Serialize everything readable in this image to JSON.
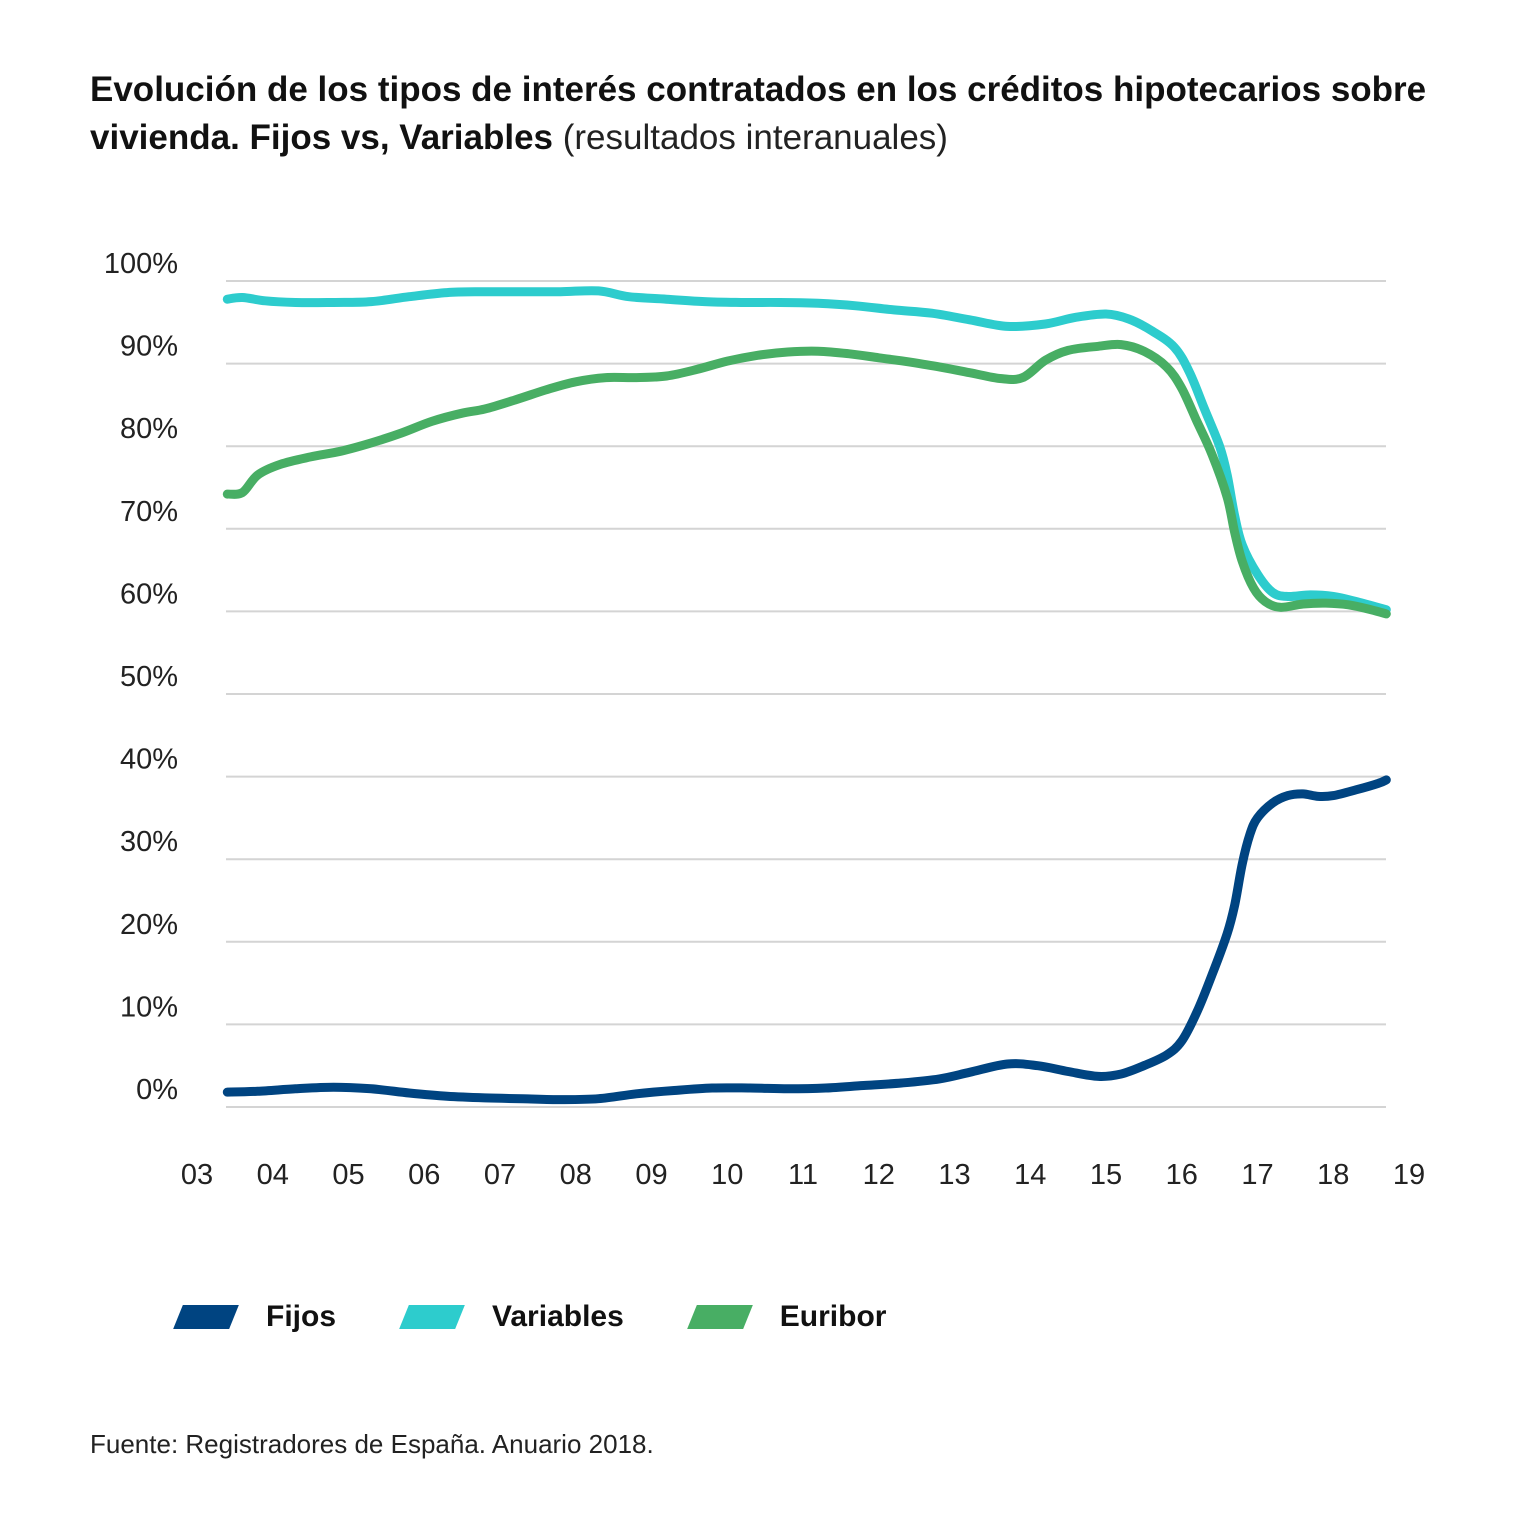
{
  "title": {
    "bold": "Evolución de los tipos de interés contratados en los créditos hipotecarios sobre vivienda. Fijos vs, Variables",
    "light": "(resultados interanuales)"
  },
  "source": "Fuente: Registradores de España. Anuario 2018.",
  "chart_data": {
    "type": "line",
    "title": "Evolución de los tipos de interés contratados en los créditos hipotecarios sobre vivienda. Fijos vs, Variables (resultados interanuales)",
    "xlabel": "",
    "ylabel": "",
    "xlim": [
      3,
      19
    ],
    "ylim": [
      0,
      100
    ],
    "grid": true,
    "legend_position": "bottom",
    "y_ticks": [
      {
        "value": 0,
        "label": "0%"
      },
      {
        "value": 10,
        "label": "10%"
      },
      {
        "value": 20,
        "label": "20%"
      },
      {
        "value": 30,
        "label": "30%"
      },
      {
        "value": 40,
        "label": "40%"
      },
      {
        "value": 50,
        "label": "50%"
      },
      {
        "value": 60,
        "label": "60%"
      },
      {
        "value": 70,
        "label": "70%"
      },
      {
        "value": 80,
        "label": "80%"
      },
      {
        "value": 90,
        "label": "90%"
      },
      {
        "value": 100,
        "label": "100%"
      }
    ],
    "x_ticks": [
      {
        "value": 3,
        "label": "03"
      },
      {
        "value": 4,
        "label": "04"
      },
      {
        "value": 5,
        "label": "05"
      },
      {
        "value": 6,
        "label": "06"
      },
      {
        "value": 7,
        "label": "07"
      },
      {
        "value": 8,
        "label": "08"
      },
      {
        "value": 9,
        "label": "09"
      },
      {
        "value": 10,
        "label": "10"
      },
      {
        "value": 11,
        "label": "11"
      },
      {
        "value": 12,
        "label": "12"
      },
      {
        "value": 13,
        "label": "13"
      },
      {
        "value": 14,
        "label": "14"
      },
      {
        "value": 15,
        "label": "15"
      },
      {
        "value": 16,
        "label": "16"
      },
      {
        "value": 17,
        "label": "17"
      },
      {
        "value": 18,
        "label": "18"
      },
      {
        "value": 19,
        "label": "19"
      }
    ],
    "series": [
      {
        "name": "Fijos",
        "color": "#004481",
        "points": [
          [
            3.4,
            1.8
          ],
          [
            3.8,
            1.9
          ],
          [
            4.3,
            2.2
          ],
          [
            4.8,
            2.4
          ],
          [
            5.3,
            2.2
          ],
          [
            5.8,
            1.7
          ],
          [
            6.3,
            1.3
          ],
          [
            6.8,
            1.1
          ],
          [
            7.3,
            1.0
          ],
          [
            7.8,
            0.9
          ],
          [
            8.3,
            1.0
          ],
          [
            8.8,
            1.6
          ],
          [
            9.3,
            2.0
          ],
          [
            9.8,
            2.3
          ],
          [
            10.3,
            2.3
          ],
          [
            10.8,
            2.2
          ],
          [
            11.3,
            2.3
          ],
          [
            11.8,
            2.6
          ],
          [
            12.3,
            2.9
          ],
          [
            12.8,
            3.4
          ],
          [
            13.2,
            4.2
          ],
          [
            13.7,
            5.2
          ],
          [
            14.1,
            5.0
          ],
          [
            14.5,
            4.3
          ],
          [
            14.9,
            3.7
          ],
          [
            15.2,
            4.0
          ],
          [
            15.5,
            5.0
          ],
          [
            15.8,
            6.3
          ],
          [
            16.0,
            8.0
          ],
          [
            16.2,
            11.5
          ],
          [
            16.4,
            16.0
          ],
          [
            16.6,
            21.0
          ],
          [
            16.7,
            24.5
          ],
          [
            16.8,
            29.5
          ],
          [
            16.9,
            33.0
          ],
          [
            17.0,
            35.0
          ],
          [
            17.2,
            36.8
          ],
          [
            17.4,
            37.7
          ],
          [
            17.6,
            37.9
          ],
          [
            17.8,
            37.6
          ],
          [
            18.0,
            37.7
          ],
          [
            18.3,
            38.4
          ],
          [
            18.6,
            39.2
          ],
          [
            18.7,
            39.6
          ]
        ]
      },
      {
        "name": "Variables",
        "color": "#2dcccd",
        "points": [
          [
            3.4,
            97.8
          ],
          [
            3.6,
            98.0
          ],
          [
            3.9,
            97.6
          ],
          [
            4.3,
            97.4
          ],
          [
            4.8,
            97.4
          ],
          [
            5.3,
            97.5
          ],
          [
            5.8,
            98.1
          ],
          [
            6.3,
            98.6
          ],
          [
            6.8,
            98.7
          ],
          [
            7.3,
            98.7
          ],
          [
            7.8,
            98.7
          ],
          [
            8.3,
            98.8
          ],
          [
            8.7,
            98.1
          ],
          [
            9.2,
            97.8
          ],
          [
            9.7,
            97.5
          ],
          [
            10.2,
            97.4
          ],
          [
            10.7,
            97.4
          ],
          [
            11.2,
            97.3
          ],
          [
            11.7,
            97.0
          ],
          [
            12.2,
            96.5
          ],
          [
            12.7,
            96.1
          ],
          [
            13.2,
            95.3
          ],
          [
            13.7,
            94.5
          ],
          [
            14.2,
            94.8
          ],
          [
            14.6,
            95.6
          ],
          [
            15.0,
            96.0
          ],
          [
            15.3,
            95.4
          ],
          [
            15.6,
            94.0
          ],
          [
            15.9,
            92.0
          ],
          [
            16.1,
            89.0
          ],
          [
            16.3,
            84.5
          ],
          [
            16.5,
            80.0
          ],
          [
            16.6,
            76.5
          ],
          [
            16.7,
            71.5
          ],
          [
            16.8,
            68.0
          ],
          [
            17.0,
            64.5
          ],
          [
            17.2,
            62.3
          ],
          [
            17.4,
            61.8
          ],
          [
            17.7,
            62.0
          ],
          [
            18.0,
            61.8
          ],
          [
            18.3,
            61.2
          ],
          [
            18.7,
            60.2
          ]
        ]
      },
      {
        "name": "Euribor",
        "color": "#48ae64",
        "points": [
          [
            3.4,
            74.2
          ],
          [
            3.6,
            74.4
          ],
          [
            3.8,
            76.5
          ],
          [
            4.1,
            77.8
          ],
          [
            4.5,
            78.7
          ],
          [
            4.9,
            79.4
          ],
          [
            5.3,
            80.4
          ],
          [
            5.7,
            81.6
          ],
          [
            6.1,
            83.0
          ],
          [
            6.5,
            84.0
          ],
          [
            6.8,
            84.5
          ],
          [
            7.2,
            85.6
          ],
          [
            7.6,
            86.8
          ],
          [
            8.0,
            87.8
          ],
          [
            8.4,
            88.3
          ],
          [
            8.8,
            88.3
          ],
          [
            9.2,
            88.5
          ],
          [
            9.6,
            89.3
          ],
          [
            10.0,
            90.3
          ],
          [
            10.4,
            91.0
          ],
          [
            10.8,
            91.4
          ],
          [
            11.2,
            91.5
          ],
          [
            11.6,
            91.2
          ],
          [
            12.0,
            90.7
          ],
          [
            12.4,
            90.2
          ],
          [
            12.8,
            89.6
          ],
          [
            13.2,
            88.9
          ],
          [
            13.6,
            88.2
          ],
          [
            13.9,
            88.3
          ],
          [
            14.2,
            90.4
          ],
          [
            14.5,
            91.6
          ],
          [
            14.9,
            92.1
          ],
          [
            15.2,
            92.3
          ],
          [
            15.5,
            91.5
          ],
          [
            15.8,
            89.6
          ],
          [
            16.0,
            87.0
          ],
          [
            16.2,
            83.0
          ],
          [
            16.4,
            79.0
          ],
          [
            16.6,
            73.8
          ],
          [
            16.7,
            69.5
          ],
          [
            16.8,
            66.0
          ],
          [
            16.95,
            62.8
          ],
          [
            17.1,
            61.2
          ],
          [
            17.3,
            60.5
          ],
          [
            17.6,
            60.9
          ],
          [
            17.9,
            61.0
          ],
          [
            18.2,
            60.8
          ],
          [
            18.5,
            60.2
          ],
          [
            18.7,
            59.7
          ]
        ]
      }
    ]
  }
}
